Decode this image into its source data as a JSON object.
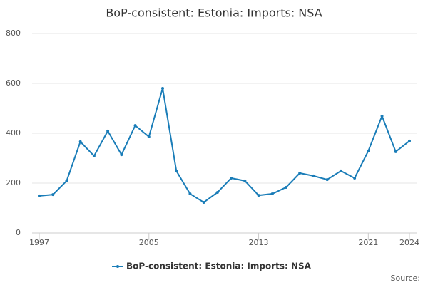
{
  "chart_data": {
    "type": "line",
    "title": "BoP-consistent: Estonia: Imports: NSA",
    "x": [
      1997,
      1998,
      1999,
      2000,
      2001,
      2002,
      2003,
      2004,
      2005,
      2006,
      2007,
      2008,
      2009,
      2010,
      2011,
      2012,
      2013,
      2014,
      2015,
      2016,
      2017,
      2018,
      2019,
      2020,
      2021,
      2022,
      2023,
      2024
    ],
    "series": [
      {
        "name": "BoP-consistent: Estonia: Imports: NSA",
        "color": "#1a7db8",
        "values": [
          149,
          154,
          209,
          366,
          309,
          409,
          314,
          431,
          386,
          580,
          249,
          157,
          123,
          163,
          220,
          209,
          151,
          157,
          183,
          240,
          229,
          214,
          249,
          220,
          329,
          469,
          326,
          369
        ]
      }
    ],
    "xlim": [
      1997,
      2024
    ],
    "xticks": [
      1997,
      2005,
      2013,
      2021,
      2024
    ],
    "ylim": [
      0,
      800
    ],
    "yticks": [
      0,
      200,
      400,
      600,
      800
    ],
    "grid": true,
    "legend": "bottom",
    "source": "Source:"
  }
}
